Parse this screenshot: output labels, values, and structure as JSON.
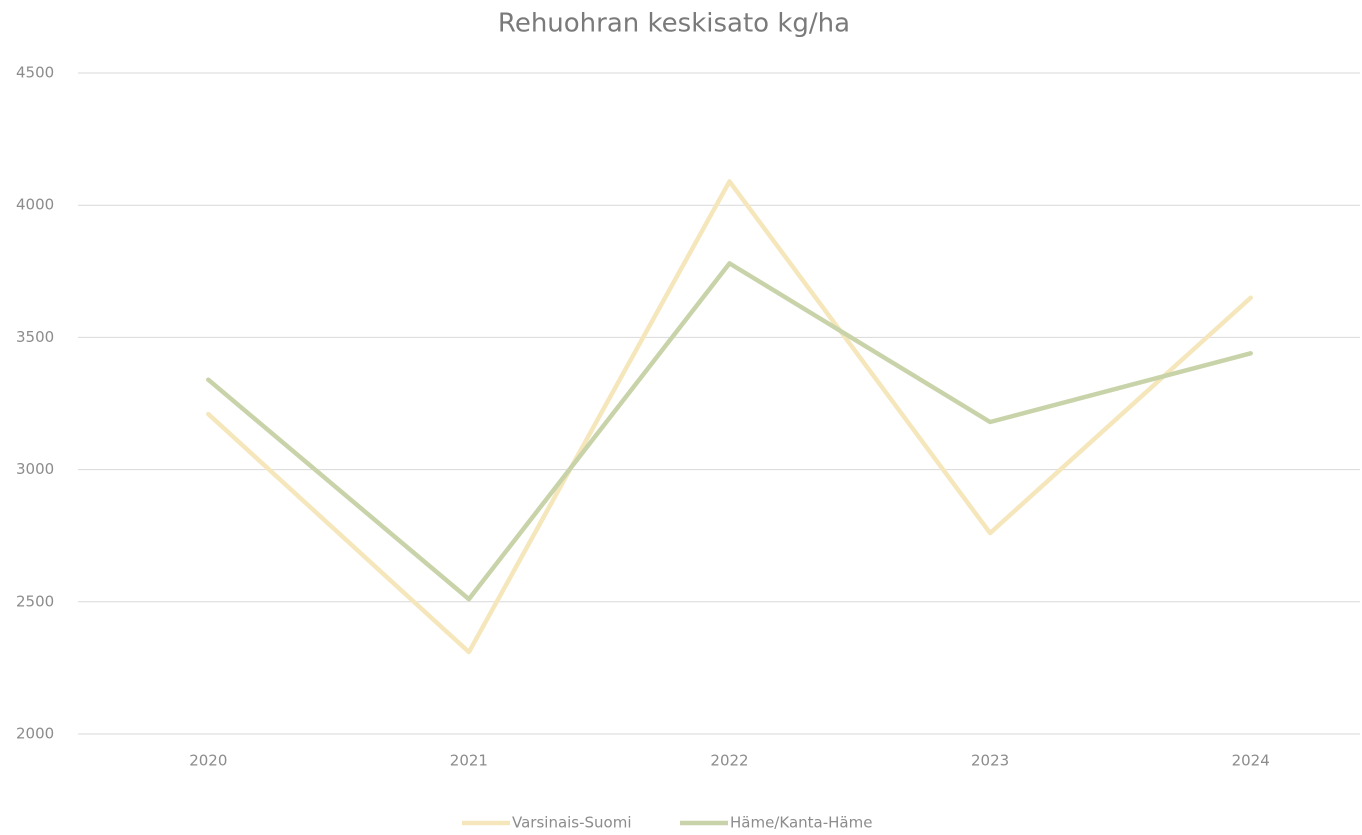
{
  "chart_data": {
    "type": "line",
    "title": "Rehuohran keskisato kg/ha",
    "categories": [
      "2020",
      "2021",
      "2022",
      "2023",
      "2024"
    ],
    "series": [
      {
        "name": "Varsinais-Suomi",
        "color": "#f5e7bb",
        "values": [
          3210,
          2310,
          4090,
          2760,
          3650
        ]
      },
      {
        "name": "Häme/Kanta-Häme",
        "color": "#c9d3a9",
        "values": [
          3340,
          2510,
          3780,
          3180,
          3440
        ]
      }
    ],
    "ylim": [
      2000,
      4500
    ],
    "yticks": [
      2000,
      2500,
      3000,
      3500,
      4000,
      4500
    ],
    "grid": true,
    "legend": "bottom"
  }
}
